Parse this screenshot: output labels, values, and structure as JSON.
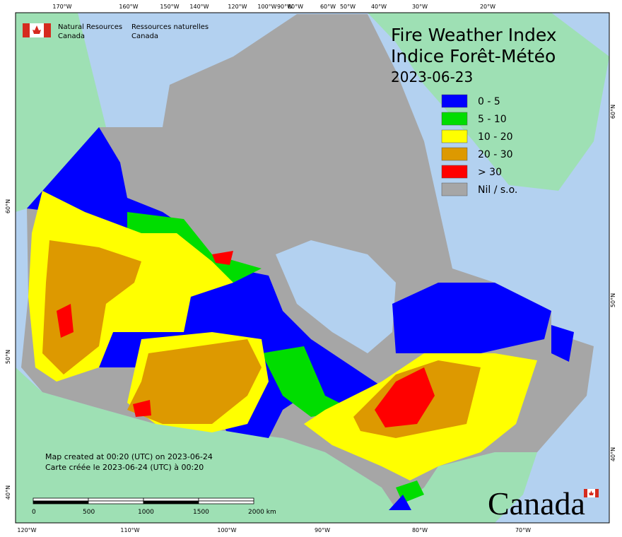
{
  "header": {
    "agency_en": [
      "Natural Resources",
      "Canada"
    ],
    "agency_fr": [
      "Ressources naturelles",
      "Canada"
    ]
  },
  "title": {
    "en": "Fire Weather Index",
    "fr": "Indice Forêt-Météo",
    "date": "2023-06-23"
  },
  "legend": [
    {
      "label": "0 - 5",
      "color": "#0000ff"
    },
    {
      "label": "5 - 10",
      "color": "#00dd00"
    },
    {
      "label": "10 - 20",
      "color": "#ffff00"
    },
    {
      "label": "20 - 30",
      "color": "#dd9900"
    },
    {
      "label": "> 30",
      "color": "#ff0000"
    },
    {
      "label": "Nil / s.o.",
      "color": "#a6a6a6"
    }
  ],
  "axes": {
    "top": [
      "170°W",
      "160°W",
      "150°W",
      "140°W",
      "120°W",
      "100°W",
      "90°W",
      "80°W",
      "60°W",
      "50°W",
      "40°W",
      "30°W",
      "20°W"
    ],
    "bottom": [
      "120°W",
      "110°W",
      "100°W",
      "90°W",
      "80°W",
      "70°W"
    ],
    "left": [
      "60°N",
      "50°N",
      "40°N"
    ],
    "right": [
      "60°N",
      "50°N",
      "40°N"
    ]
  },
  "notes": [
    "Map created at 00:20 (UTC) on 2023-06-24",
    "Carte créée le 2023-06-24 (UTC) à 00:20"
  ],
  "scale_bar": [
    "0",
    "500",
    "1000",
    "1500",
    "2000  km"
  ],
  "wordmark": "Canada"
}
